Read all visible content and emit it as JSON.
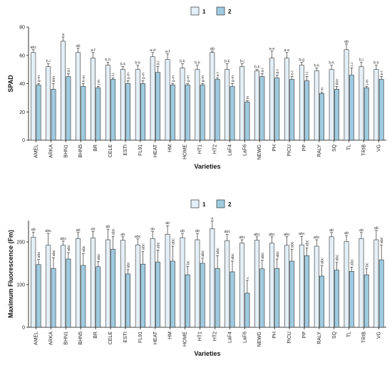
{
  "legend": {
    "entries": [
      "1",
      "2"
    ],
    "colors": [
      "#e4eff7",
      "#9fcbe0"
    ]
  },
  "chart_data": [
    {
      "type": "bar",
      "ylabel": "SPAD",
      "xlabel": "Varieties",
      "ylim": [
        0,
        80
      ],
      "yticks": [
        "0",
        "20",
        "40",
        "60",
        "80"
      ],
      "categories": [
        "AMEL",
        "ARKA",
        "BHN1",
        "BHN5",
        "BR",
        "CELE",
        "ESTI",
        "FL91",
        "HEAT",
        "HM",
        "HOME",
        "HT1",
        "HT2",
        "LaF4",
        "LaF6",
        "NEWG",
        "PH",
        "PICU",
        "PP",
        "RALY",
        "SQ",
        "TL",
        "TRIB",
        "VG"
      ],
      "series": [
        {
          "name": "1",
          "values": [
            62,
            52,
            70,
            62,
            58,
            53,
            50,
            50,
            59,
            57,
            51,
            50,
            62,
            50,
            52,
            49,
            58,
            58,
            53,
            49,
            50,
            64,
            52,
            50
          ],
          "errors": [
            2,
            2,
            3,
            3,
            4,
            2,
            2,
            3,
            3,
            4,
            3,
            3,
            1,
            4,
            2,
            1,
            5,
            4,
            2,
            2,
            3,
            4,
            3,
            3
          ],
          "labels": [
            "abc",
            "b-i",
            "a",
            "ab",
            "a-f",
            "b-h",
            "b-k",
            "b-k",
            "a-d",
            "a-f",
            "b-k",
            "b-k",
            "ab",
            "b-k",
            "b-j",
            "b-k",
            "a-e",
            "a-e",
            "b-g",
            "b-k",
            "b-k",
            "ab",
            "b-i",
            "b-k"
          ]
        },
        {
          "name": "2",
          "values": [
            39,
            36,
            45,
            38,
            37,
            43,
            40,
            40,
            48,
            39,
            39,
            39,
            43,
            38,
            27,
            45,
            44,
            43,
            42,
            33,
            36,
            46,
            37,
            43
          ],
          "errors": [
            1,
            4,
            2,
            2,
            1,
            1,
            2,
            2,
            4,
            1,
            1,
            1,
            1,
            2,
            1,
            2,
            2,
            2,
            3,
            1,
            2,
            5,
            1,
            2
          ],
          "labels": [
            "g-m",
            "klm",
            "d-l",
            "h-m",
            "j-m",
            "f-l",
            "g-m",
            "g-m",
            "b-i",
            "g-m",
            "g-m",
            "g-m",
            "e-l",
            "g-m",
            "m",
            "d-l",
            "d-l",
            "e-l",
            "f-l",
            "m",
            "klm",
            "c-l",
            "j-m",
            "e-l"
          ]
        }
      ]
    },
    {
      "type": "bar",
      "ylabel": "Maximum Fluorescence (Fm)",
      "xlabel": "Varieties",
      "ylim": [
        0,
        250
      ],
      "yticks": [
        "0",
        "100",
        "200"
      ],
      "categories": [
        "AMEL",
        "ARKA",
        "BHN1",
        "BHN5",
        "BR",
        "CELE",
        "ESTI",
        "FL91",
        "HEAT",
        "HM",
        "HOME",
        "HT1",
        "HT2",
        "LaF4",
        "LaF6",
        "NEWG",
        "PH",
        "PICU",
        "PP",
        "RALY",
        "SQ",
        "TL",
        "TRIB",
        "VG"
      ],
      "series": [
        {
          "name": "1",
          "values": [
            211,
            192,
            192,
            208,
            209,
            205,
            204,
            193,
            208,
            218,
            210,
            205,
            231,
            203,
            197,
            204,
            197,
            192,
            193,
            190,
            212,
            201,
            208,
            205
          ],
          "errors": [
            12,
            28,
            10,
            14,
            15,
            25,
            8,
            14,
            16,
            20,
            10,
            15,
            18,
            15,
            8,
            8,
            15,
            20,
            20,
            15,
            10,
            14,
            14,
            22
          ],
          "labels": [
            "ab",
            "abc",
            "abc",
            "ab",
            "ab",
            "ab",
            "ab",
            "abc",
            "ab",
            "ab",
            "ab",
            "ab",
            "a",
            "abc",
            "abc",
            "abc",
            "abc",
            "abc",
            "abc",
            "abc",
            "ab",
            "ab",
            "ab",
            "ab"
          ]
        },
        {
          "name": "2",
          "values": [
            147,
            138,
            160,
            145,
            142,
            183,
            125,
            148,
            153,
            155,
            123,
            150,
            138,
            130,
            80,
            137,
            138,
            155,
            168,
            120,
            134,
            131,
            123,
            158
          ],
          "errors": [
            12,
            25,
            15,
            28,
            12,
            30,
            10,
            30,
            28,
            35,
            20,
            12,
            30,
            25,
            30,
            20,
            22,
            28,
            18,
            25,
            18,
            10,
            15,
            35
          ],
          "labels": [
            "abc",
            "abc",
            "abc",
            "abc",
            "abc",
            "abc",
            "abc",
            "abc",
            "abc",
            "abc",
            "bc",
            "abc",
            "abc",
            "abc",
            "c",
            "abc",
            "abc",
            "abc",
            "abc",
            "abc",
            "abc",
            "abc",
            "bc",
            "abc"
          ]
        }
      ]
    }
  ]
}
